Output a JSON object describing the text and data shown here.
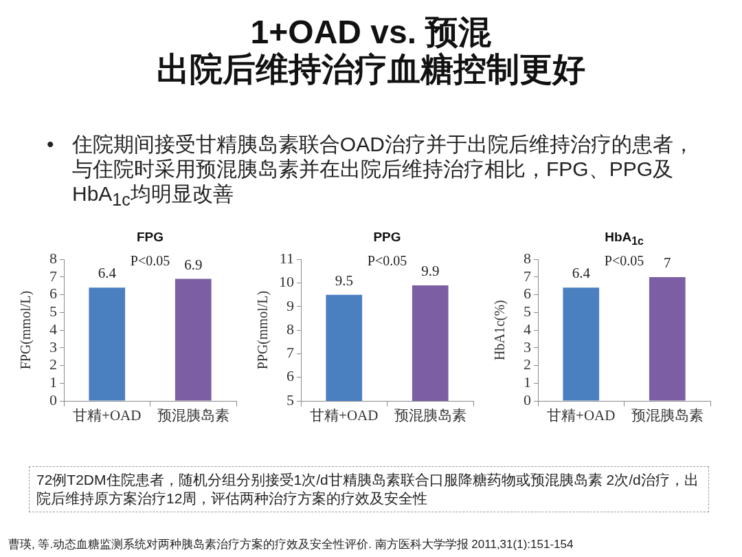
{
  "chart_data": [
    {
      "type": "other",
      "title": "1+OAD vs. 预混",
      "subtitle": "出院后维持治疗血糖控制更好",
      "annotations": [
        "• 住院期间接受甘精胰岛素联合OAD治疗并于出院后维持治疗的患者，与住院时采用预混胰岛素并在出院后维持治疗相比，FPG、PPG及HbA$_{1c}$均明显改善"
      ]
    },
    {
      "type": "bar",
      "title": "FPG",
      "categories": [
        "甘精+OAD",
        "预混胰岛素"
      ],
      "values": [
        6.4,
        6.9
      ],
      "colors": [
        "#4a7fc0",
        "#7b5ea3"
      ],
      "ylabel": "FPG(mmol/L)",
      "ylim": [
        0,
        8
      ],
      "yticks": [
        0,
        1,
        2,
        3,
        4,
        5,
        6,
        7,
        8
      ],
      "data_labels": true,
      "annotations": [
        "P<0.05"
      ]
    },
    {
      "type": "bar",
      "title": "PPG",
      "categories": [
        "甘精+OAD",
        "预混胰岛素"
      ],
      "values": [
        9.5,
        9.9
      ],
      "colors": [
        "#4a7fc0",
        "#7b5ea3"
      ],
      "ylabel": "PPG(mmol/L)",
      "ylim": [
        5,
        11
      ],
      "yticks": [
        5,
        6,
        7,
        8,
        9,
        10,
        11
      ],
      "data_labels": true,
      "annotations": [
        "P<0.05"
      ]
    },
    {
      "type": "bar",
      "title": "HbA$_{1c}$",
      "categories": [
        "甘精+OAD",
        "预混胰岛素"
      ],
      "values": [
        6.4,
        7
      ],
      "colors": [
        "#4a7fc0",
        "#7b5ea3"
      ],
      "ylabel": "HbA1c(%)",
      "ylim": [
        0,
        8
      ],
      "yticks": [
        0,
        1,
        2,
        3,
        4,
        5,
        6,
        7,
        8
      ],
      "data_labels": true,
      "annotations": [
        "P<0.05"
      ]
    },
    {
      "type": "other",
      "annotations": [
        "72例T2DM住院患者，随机分组分别接受1次/d甘精胰岛素联合口服降糖药物或预混胰岛素 2次/d治疗，出院后维持原方案治疗12周，评估两种治疗方案的疗效及安全性",
        "曹瑛, 等.动态血糖监测系统对两种胰岛素治疗方案的疗效及安全性评价. 南方医科大学学报 2011,31(1):151-154"
      ]
    }
  ]
}
